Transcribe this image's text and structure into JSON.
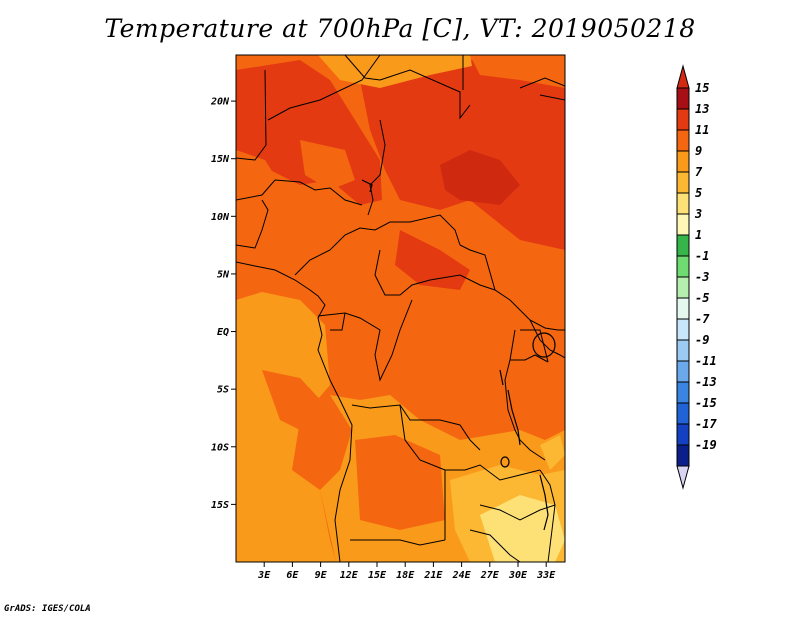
{
  "title": "Temperature at 700hPa [C], VT: 2019050218",
  "credit": "GrADS: IGES/COLA",
  "map": {
    "lon_range": [
      0,
      35
    ],
    "lat_range": [
      -20,
      24
    ],
    "lat_ticks": [
      {
        "label": "20N",
        "value": 20
      },
      {
        "label": "15N",
        "value": 15
      },
      {
        "label": "10N",
        "value": 10
      },
      {
        "label": "5N",
        "value": 5
      },
      {
        "label": "EQ",
        "value": 0
      },
      {
        "label": "5S",
        "value": -5
      },
      {
        "label": "10S",
        "value": -10
      },
      {
        "label": "15S",
        "value": -15
      }
    ],
    "lon_ticks": [
      {
        "label": "3E",
        "value": 3
      },
      {
        "label": "6E",
        "value": 6
      },
      {
        "label": "9E",
        "value": 9
      },
      {
        "label": "12E",
        "value": 12
      },
      {
        "label": "15E",
        "value": 15
      },
      {
        "label": "18E",
        "value": 18
      },
      {
        "label": "21E",
        "value": 21
      },
      {
        "label": "24E",
        "value": 24
      },
      {
        "label": "27E",
        "value": 27
      },
      {
        "label": "30E",
        "value": 30
      },
      {
        "label": "33E",
        "value": 33
      }
    ]
  },
  "colorbar": {
    "levels": [
      {
        "label": "15",
        "color": "#a50f15"
      },
      {
        "label": "13",
        "color": "#e43a12"
      },
      {
        "label": "11",
        "color": "#f46710"
      },
      {
        "label": "9",
        "color": "#fa9a1a"
      },
      {
        "label": "7",
        "color": "#fcb733"
      },
      {
        "label": "5",
        "color": "#fde176"
      },
      {
        "label": "3",
        "color": "#fef7b6"
      },
      {
        "label": "1",
        "color": "#36b54a"
      },
      {
        "label": "-1",
        "color": "#6fdc71"
      },
      {
        "label": "-3",
        "color": "#b5efb0"
      },
      {
        "label": "-5",
        "color": "#e4f8f0"
      },
      {
        "label": "-7",
        "color": "#c7e6fb"
      },
      {
        "label": "-9",
        "color": "#9bcbf2"
      },
      {
        "label": "-11",
        "color": "#6aa9ec"
      },
      {
        "label": "-13",
        "color": "#3a85e2"
      },
      {
        "label": "-15",
        "color": "#1f63d6"
      },
      {
        "label": "-17",
        "color": "#1440c2"
      },
      {
        "label": "-19",
        "color": "#0a1f8a"
      }
    ],
    "bottom_color": "#d8d4f2",
    "top_color": "#d42a12"
  }
}
